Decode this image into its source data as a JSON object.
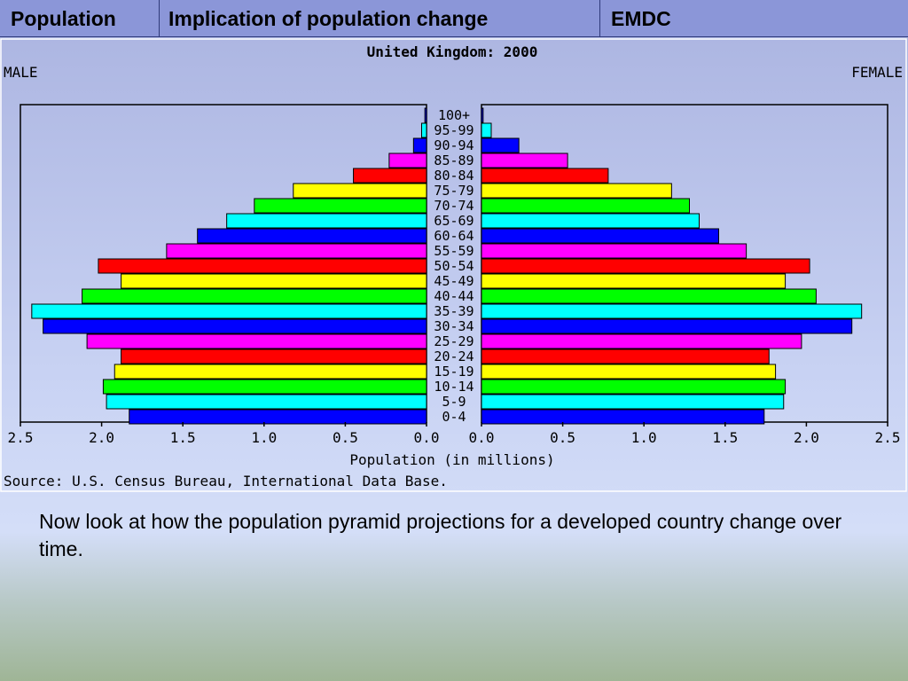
{
  "tabs": [
    {
      "label": "Population"
    },
    {
      "label": "Implication of population change"
    },
    {
      "label": "EMDC"
    }
  ],
  "chart_data": {
    "type": "bar",
    "title": "United Kingdom: 2000",
    "left_label": "MALE",
    "right_label": "FEMALE",
    "xlabel": "Population (in millions)",
    "source": "Source: U.S. Census Bureau, International Data Base.",
    "xlim": [
      0,
      2.5
    ],
    "ticks": [
      "2.5",
      "2.0",
      "1.5",
      "1.0",
      "0.5",
      "0.0"
    ],
    "ticks_right": [
      "0.0",
      "0.5",
      "1.0",
      "1.5",
      "2.0",
      "2.5"
    ],
    "categories": [
      "100+",
      "95-99",
      "90-94",
      "85-89",
      "80-84",
      "75-79",
      "70-74",
      "65-69",
      "60-64",
      "55-59",
      "50-54",
      "45-49",
      "40-44",
      "35-39",
      "30-34",
      "25-29",
      "20-24",
      "15-19",
      "10-14",
      "5-9",
      "0-4"
    ],
    "colors": [
      "#0000ff",
      "#00ffff",
      "#0000ff",
      "#ff00ff",
      "#ff0000",
      "#ffff00",
      "#00ff00",
      "#00ffff",
      "#0000ff",
      "#ff00ff",
      "#ff0000",
      "#ffff00",
      "#00ff00",
      "#00ffff",
      "#0000ff",
      "#ff00ff",
      "#ff0000",
      "#ffff00",
      "#00ff00",
      "#00ffff",
      "#0000ff"
    ],
    "series": [
      {
        "name": "MALE",
        "values": [
          0.01,
          0.03,
          0.08,
          0.23,
          0.45,
          0.82,
          1.06,
          1.23,
          1.41,
          1.6,
          2.02,
          1.88,
          2.12,
          2.43,
          2.36,
          2.09,
          1.88,
          1.92,
          1.99,
          1.97,
          1.83
        ]
      },
      {
        "name": "FEMALE",
        "values": [
          0.01,
          0.06,
          0.23,
          0.53,
          0.78,
          1.17,
          1.28,
          1.34,
          1.46,
          1.63,
          2.02,
          1.87,
          2.06,
          2.34,
          2.28,
          1.97,
          1.77,
          1.81,
          1.87,
          1.86,
          1.74
        ]
      }
    ]
  },
  "caption": "Now look at how the population pyramid projections for a developed country change over time."
}
